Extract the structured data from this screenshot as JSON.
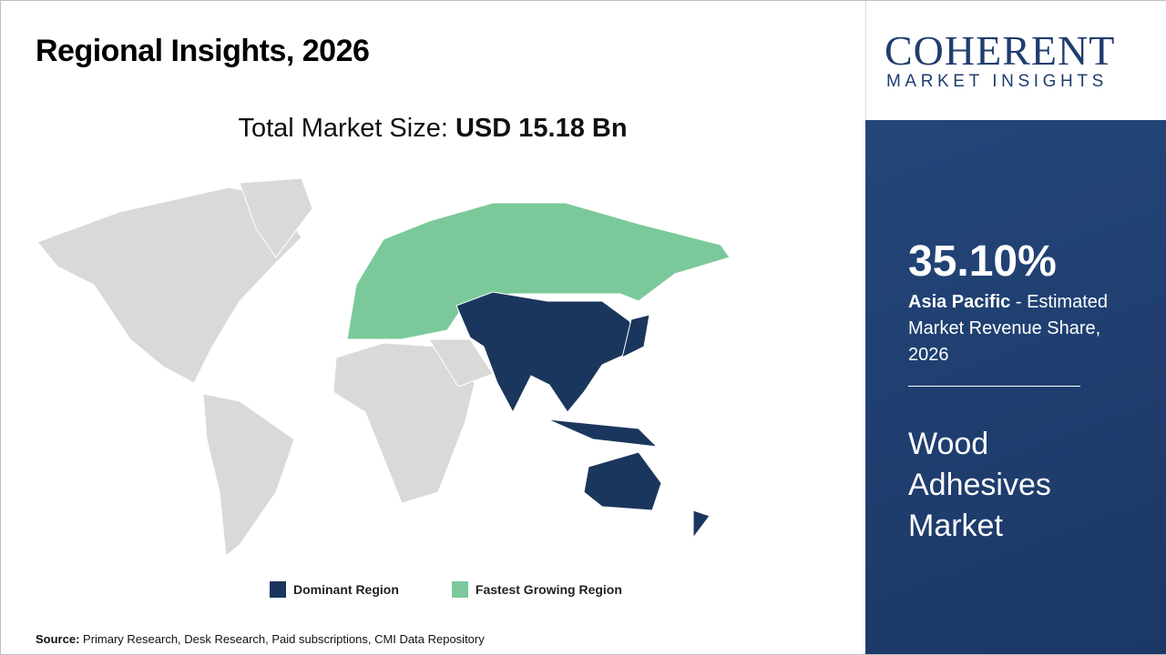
{
  "header": {
    "title": "Regional Insights, 2026"
  },
  "market_size": {
    "label": "Total Market Size:",
    "value": "USD 15.18 Bn"
  },
  "legend": [
    {
      "label": "Dominant Region",
      "color": "#1b365d"
    },
    {
      "label": "Fastest Growing Region",
      "color": "#7bc99a"
    }
  ],
  "source": {
    "label": "Source:",
    "text": "Primary Research, Desk Research, Paid subscriptions, CMI Data Repository"
  },
  "logo": {
    "name": "COHERENT",
    "tagline": "MARKET INSIGHTS"
  },
  "sidebar": {
    "share": "35.10%",
    "region": "Asia Pacific",
    "description": "- Estimated Market Revenue Share, 2026",
    "market": "Wood Adhesives Market"
  }
}
